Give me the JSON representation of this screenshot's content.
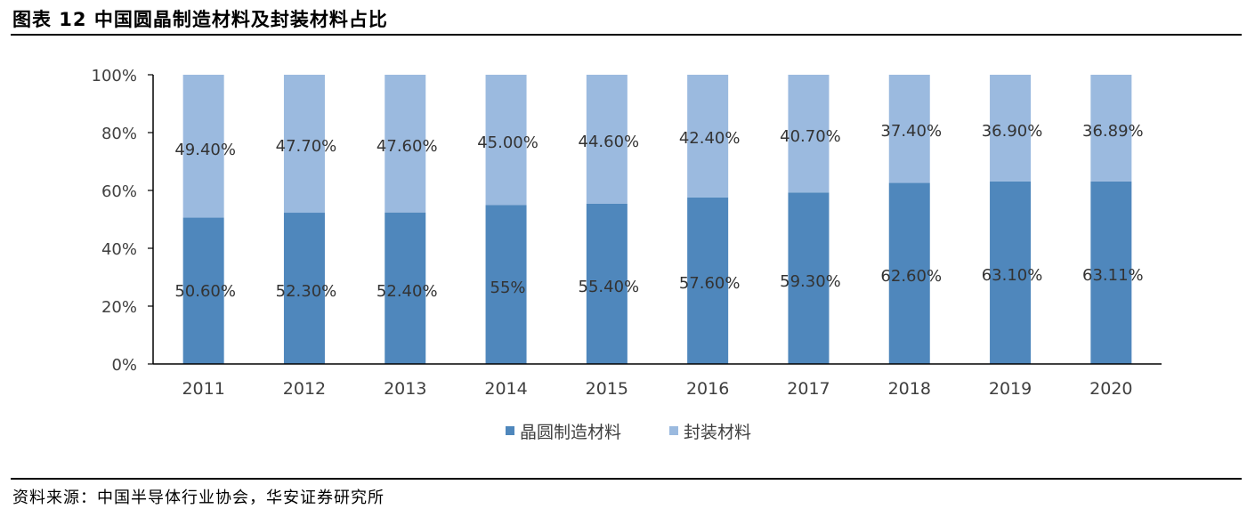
{
  "title": "图表 12 中国圆晶制造材料及封装材料占比",
  "source": "资料来源：中国半导体行业协会，华安证券研究所",
  "colors": {
    "wafer": "#4f87bc",
    "packaging": "#9bbadf",
    "axis": "#000000",
    "text": "#404040"
  },
  "chart_data": {
    "type": "bar",
    "stacked": true,
    "percent": true,
    "categories": [
      "2011",
      "2012",
      "2013",
      "2014",
      "2015",
      "2016",
      "2017",
      "2018",
      "2019",
      "2020"
    ],
    "series": [
      {
        "name": "晶圆制造材料",
        "values": [
          50.6,
          52.3,
          52.4,
          55,
          55.4,
          57.6,
          59.3,
          62.6,
          63.1,
          63.11
        ],
        "labels": [
          "50.60%",
          "52.30%",
          "52.40%",
          "55%",
          "55.40%",
          "57.60%",
          "59.30%",
          "62.60%",
          "63.10%",
          "63.11%"
        ]
      },
      {
        "name": "封装材料",
        "values": [
          49.4,
          47.7,
          47.6,
          45.0,
          44.6,
          42.4,
          40.7,
          37.4,
          36.9,
          36.89
        ],
        "labels": [
          "49.40%",
          "47.70%",
          "47.60%",
          "45.00%",
          "44.60%",
          "42.40%",
          "40.70%",
          "37.40%",
          "36.90%",
          "36.89%"
        ]
      }
    ],
    "yticks": [
      "0%",
      "20%",
      "40%",
      "60%",
      "80%",
      "100%"
    ],
    "ylim": [
      0,
      100
    ],
    "grid": false,
    "legend": "bottom-center"
  }
}
